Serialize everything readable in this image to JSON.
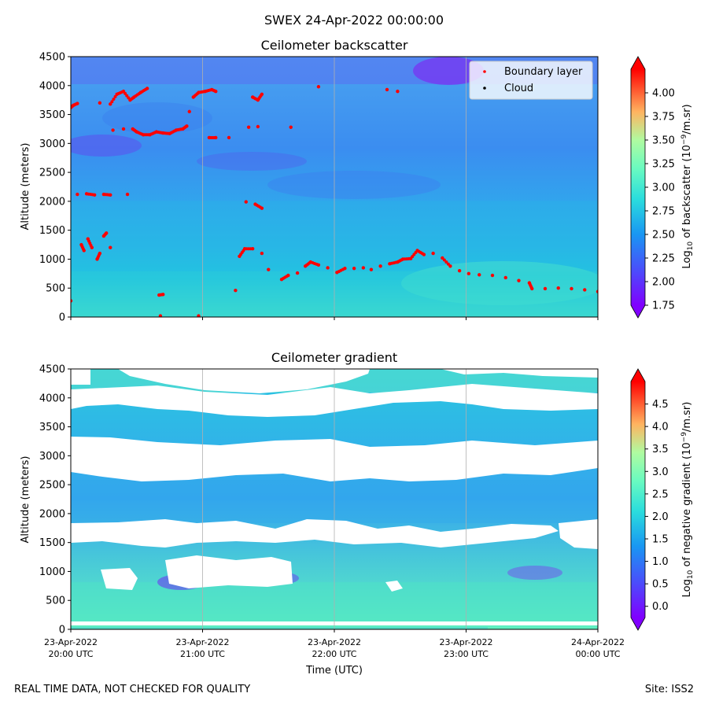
{
  "figure": {
    "suptitle": "SWEX 24-Apr-2022 00:00:00",
    "footer_left": "REAL TIME DATA, NOT CHECKED FOR QUALITY",
    "footer_right": "Site: ISS2"
  },
  "chart_data": [
    {
      "type": "heatmap",
      "title": "Ceilometer backscatter",
      "ylabel": "Altitude (meters)",
      "xlabel": "",
      "ylim": [
        0,
        4500
      ],
      "yticks": [
        "0",
        "500",
        "1000",
        "1500",
        "2000",
        "2500",
        "3000",
        "3500",
        "4000",
        "4500"
      ],
      "xticks": [
        "",
        "",
        "",
        "",
        ""
      ],
      "colormap": "rainbow",
      "colorbar": {
        "label": "Log10 of backscatter (10^-9/m.sr)",
        "min": 1.75,
        "max": 4.25,
        "ticks": [
          "1.75",
          "2.00",
          "2.25",
          "2.50",
          "2.75",
          "3.00",
          "3.25",
          "3.50",
          "3.75",
          "4.00"
        ],
        "extend": "both"
      },
      "legend": {
        "position": "top-right",
        "entries": [
          {
            "label": "Boundary layer",
            "color": "#ff0000"
          },
          {
            "label": "Cloud",
            "color": "#000000"
          }
        ]
      },
      "boundary_layer": [
        {
          "t": 20.0,
          "alt": 3620
        },
        {
          "t": 20.02,
          "alt": 3660
        },
        {
          "t": 20.05,
          "alt": 3690
        },
        {
          "t": 20.22,
          "alt": 3700
        },
        {
          "t": 20.3,
          "alt": 3680
        },
        {
          "t": 20.35,
          "alt": 3850
        },
        {
          "t": 20.4,
          "alt": 3900
        },
        {
          "t": 20.45,
          "alt": 3750
        },
        {
          "t": 20.48,
          "alt": 3800
        },
        {
          "t": 20.53,
          "alt": 3880
        },
        {
          "t": 20.58,
          "alt": 3950
        },
        {
          "t": 20.32,
          "alt": 3230
        },
        {
          "t": 20.4,
          "alt": 3250
        },
        {
          "t": 20.47,
          "alt": 3250
        },
        {
          "t": 20.5,
          "alt": 3200
        },
        {
          "t": 20.55,
          "alt": 3150
        },
        {
          "t": 20.6,
          "alt": 3150
        },
        {
          "t": 20.65,
          "alt": 3200
        },
        {
          "t": 20.7,
          "alt": 3180
        },
        {
          "t": 20.75,
          "alt": 3170
        },
        {
          "t": 20.8,
          "alt": 3230
        },
        {
          "t": 20.85,
          "alt": 3250
        },
        {
          "t": 20.88,
          "alt": 3300
        },
        {
          "t": 20.9,
          "alt": 3550
        },
        {
          "t": 20.93,
          "alt": 3800
        },
        {
          "t": 20.97,
          "alt": 3880
        },
        {
          "t": 21.02,
          "alt": 3900
        },
        {
          "t": 21.07,
          "alt": 3930
        },
        {
          "t": 21.1,
          "alt": 3900
        },
        {
          "t": 21.05,
          "alt": 3100
        },
        {
          "t": 21.1,
          "alt": 3100
        },
        {
          "t": 21.2,
          "alt": 3100
        },
        {
          "t": 21.38,
          "alt": 3800
        },
        {
          "t": 21.42,
          "alt": 3750
        },
        {
          "t": 21.45,
          "alt": 3850
        },
        {
          "t": 21.35,
          "alt": 3280
        },
        {
          "t": 21.42,
          "alt": 3290
        },
        {
          "t": 21.67,
          "alt": 3280
        },
        {
          "t": 21.88,
          "alt": 3980
        },
        {
          "t": 22.4,
          "alt": 3930
        },
        {
          "t": 22.48,
          "alt": 3900
        },
        {
          "t": 20.05,
          "alt": 2120
        },
        {
          "t": 20.12,
          "alt": 2130
        },
        {
          "t": 20.18,
          "alt": 2110
        },
        {
          "t": 20.25,
          "alt": 2120
        },
        {
          "t": 20.3,
          "alt": 2110
        },
        {
          "t": 20.43,
          "alt": 2120
        },
        {
          "t": 21.33,
          "alt": 1990
        },
        {
          "t": 21.4,
          "alt": 1950
        },
        {
          "t": 21.45,
          "alt": 1880
        },
        {
          "t": 20.08,
          "alt": 1250
        },
        {
          "t": 20.1,
          "alt": 1150
        },
        {
          "t": 20.13,
          "alt": 1350
        },
        {
          "t": 20.16,
          "alt": 1200
        },
        {
          "t": 20.2,
          "alt": 1000
        },
        {
          "t": 20.22,
          "alt": 1100
        },
        {
          "t": 20.25,
          "alt": 1400
        },
        {
          "t": 20.27,
          "alt": 1450
        },
        {
          "t": 20.3,
          "alt": 1200
        },
        {
          "t": 21.28,
          "alt": 1050
        },
        {
          "t": 21.32,
          "alt": 1180
        },
        {
          "t": 21.38,
          "alt": 1180
        },
        {
          "t": 21.45,
          "alt": 1100
        },
        {
          "t": 21.5,
          "alt": 820
        },
        {
          "t": 21.25,
          "alt": 460
        },
        {
          "t": 20.67,
          "alt": 380
        },
        {
          "t": 20.7,
          "alt": 390
        },
        {
          "t": 20.68,
          "alt": 20
        },
        {
          "t": 20.97,
          "alt": 20
        },
        {
          "t": 20.0,
          "alt": 280
        },
        {
          "t": 21.6,
          "alt": 650
        },
        {
          "t": 21.65,
          "alt": 720
        },
        {
          "t": 21.72,
          "alt": 760
        },
        {
          "t": 21.78,
          "alt": 880
        },
        {
          "t": 21.82,
          "alt": 950
        },
        {
          "t": 21.88,
          "alt": 900
        },
        {
          "t": 21.95,
          "alt": 850
        },
        {
          "t": 22.02,
          "alt": 770
        },
        {
          "t": 22.08,
          "alt": 840
        },
        {
          "t": 22.15,
          "alt": 840
        },
        {
          "t": 22.22,
          "alt": 850
        },
        {
          "t": 22.28,
          "alt": 820
        },
        {
          "t": 22.35,
          "alt": 880
        },
        {
          "t": 22.42,
          "alt": 920
        },
        {
          "t": 22.48,
          "alt": 950
        },
        {
          "t": 22.52,
          "alt": 1000
        },
        {
          "t": 22.58,
          "alt": 1010
        },
        {
          "t": 22.63,
          "alt": 1150
        },
        {
          "t": 22.68,
          "alt": 1080
        },
        {
          "t": 22.75,
          "alt": 1100
        },
        {
          "t": 22.82,
          "alt": 1020
        },
        {
          "t": 22.88,
          "alt": 880
        },
        {
          "t": 22.95,
          "alt": 800
        },
        {
          "t": 23.02,
          "alt": 750
        },
        {
          "t": 23.1,
          "alt": 730
        },
        {
          "t": 23.2,
          "alt": 720
        },
        {
          "t": 23.3,
          "alt": 680
        },
        {
          "t": 23.4,
          "alt": 630
        },
        {
          "t": 23.48,
          "alt": 590
        },
        {
          "t": 23.5,
          "alt": 490
        },
        {
          "t": 23.6,
          "alt": 490
        },
        {
          "t": 23.7,
          "alt": 500
        },
        {
          "t": 23.8,
          "alt": 490
        },
        {
          "t": 23.9,
          "alt": 470
        },
        {
          "t": 24.0,
          "alt": 440
        }
      ]
    },
    {
      "type": "heatmap",
      "title": "Ceilometer gradient",
      "ylabel": "Altitude (meters)",
      "xlabel": "Time (UTC)",
      "ylim": [
        0,
        4500
      ],
      "yticks": [
        "0",
        "500",
        "1000",
        "1500",
        "2000",
        "2500",
        "3000",
        "3500",
        "4000",
        "4500"
      ],
      "xticks": [
        [
          "23-Apr-2022",
          "20:00 UTC"
        ],
        [
          "23-Apr-2022",
          "21:00 UTC"
        ],
        [
          "23-Apr-2022",
          "22:00 UTC"
        ],
        [
          "23-Apr-2022",
          "23:00 UTC"
        ],
        [
          "24-Apr-2022",
          "00:00 UTC"
        ]
      ],
      "colormap": "rainbow",
      "colorbar": {
        "label": "Log10 of negative gradient (10^-9/m.sr)",
        "min": -0.25,
        "max": 5.0,
        "ticks": [
          "0.0",
          "0.5",
          "1.0",
          "1.5",
          "2.0",
          "2.5",
          "3.0",
          "3.5",
          "4.0",
          "4.5"
        ],
        "extend": "both"
      }
    }
  ]
}
